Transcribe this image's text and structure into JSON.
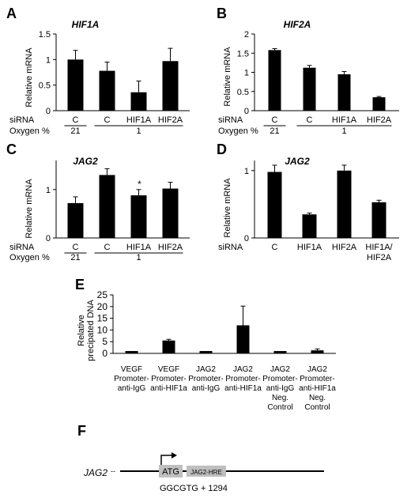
{
  "panels": [
    {
      "letter": "A",
      "title": "HIF1A",
      "ylabel": "Relative mRNA",
      "row_labels": [
        "siRNA",
        "Oxygen %"
      ],
      "chart_data": {
        "type": "bar",
        "title": "HIF1A",
        "ylabel": "Relative mRNA",
        "ylim": [
          0,
          1.5
        ],
        "yticks": [
          "0",
          "0.5",
          "1",
          "1.5"
        ],
        "categories": [
          "C",
          "C",
          "HIF1A",
          "HIF2A"
        ],
        "values": [
          1.0,
          0.78,
          0.36,
          0.97
        ],
        "errors": [
          0.18,
          0.17,
          0.22,
          0.25
        ],
        "oxygen": [
          {
            "label": "21",
            "span": [
              0,
              0
            ]
          },
          {
            "label": "1",
            "span": [
              1,
              3
            ]
          }
        ]
      }
    },
    {
      "letter": "B",
      "title": "HIF2A",
      "ylabel": "Relative mRNA",
      "row_labels": [
        "siRNA",
        "Oxygen %"
      ],
      "chart_data": {
        "type": "bar",
        "title": "HIF2A",
        "ylabel": "Relative mRNA",
        "ylim": [
          0,
          2
        ],
        "yticks": [
          "0",
          "0.5",
          "1",
          "1.5",
          "2"
        ],
        "categories": [
          "C",
          "C",
          "HIF1A",
          "HIF2A"
        ],
        "values": [
          1.58,
          1.12,
          0.95,
          0.35
        ],
        "errors": [
          0.04,
          0.06,
          0.07,
          0.02
        ],
        "oxygen": [
          {
            "label": "21",
            "span": [
              0,
              0
            ]
          },
          {
            "label": "1",
            "span": [
              1,
              3
            ]
          }
        ]
      }
    },
    {
      "letter": "C",
      "title": "JAG2",
      "ylabel": "Relative mRNA",
      "row_labels": [
        "siRNA",
        "Oxygen %"
      ],
      "chart_data": {
        "type": "bar",
        "title": "JAG2",
        "ylabel": "Relative mRNA",
        "ylim": [
          0,
          1.6
        ],
        "yticks": [
          "0",
          "1"
        ],
        "categories": [
          "C",
          "C",
          "HIF1A",
          "HIF2A"
        ],
        "values": [
          0.72,
          1.3,
          0.88,
          1.02
        ],
        "errors": [
          0.13,
          0.13,
          0.12,
          0.13
        ],
        "annotations": [
          {
            "index": 2,
            "text": "*"
          }
        ],
        "oxygen": [
          {
            "label": "21",
            "span": [
              0,
              0
            ]
          },
          {
            "label": "1",
            "span": [
              1,
              3
            ]
          }
        ]
      }
    },
    {
      "letter": "D",
      "title": "JAG2",
      "ylabel": "Relative mRNA",
      "row_labels": [
        "siRNA"
      ],
      "chart_data": {
        "type": "bar",
        "title": "JAG2",
        "ylabel": "Relative mRNA",
        "ylim": [
          0,
          1.15
        ],
        "yticks": [
          "0",
          "1"
        ],
        "categories": [
          "C",
          "HIF1A",
          "HIF2A",
          "HIF1A/ HIF2A"
        ],
        "values": [
          0.98,
          0.35,
          1.0,
          0.53
        ],
        "errors": [
          0.1,
          0.02,
          0.08,
          0.03
        ]
      }
    },
    {
      "letter": "E",
      "ylabel": "Relative precipated DNA",
      "chart_data": {
        "type": "bar",
        "ylabel": "Relative precipated DNA",
        "ylim": [
          0,
          25
        ],
        "yticks": [
          "0",
          "5",
          "10",
          "15",
          "20",
          "25"
        ],
        "categories": [
          "VEGF Promoter- anti-IgG",
          "VEGF Promoter- anti-HIF1a",
          "JAG2 Promoter- anti-IgG",
          "JAG2 Promoter- anti-HIF1a",
          "JAG2 Promoter- anti-IgG Neg. Control",
          "JAG2 Promoter- anti-HIF1a Neg. Control"
        ],
        "values": [
          1.0,
          5.5,
          1.0,
          12.0,
          1.0,
          1.3
        ],
        "errors": [
          0.0,
          0.5,
          0.0,
          8.2,
          0.0,
          0.6
        ]
      }
    }
  ],
  "panel_f": {
    "letter": "F",
    "gene": "JAG2",
    "dash": "--",
    "atg": "ATG",
    "hre": "JAG2-HRE",
    "sequence": "GGCGTG + 1294"
  }
}
